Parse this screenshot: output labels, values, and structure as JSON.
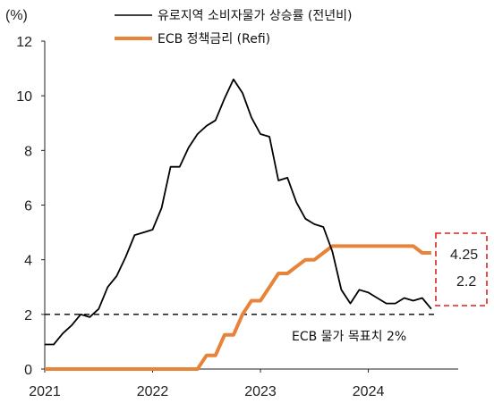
{
  "chart_data": {
    "type": "line",
    "unit_label": "(%)",
    "ylim": [
      0,
      12
    ],
    "yticks": [
      0,
      2,
      4,
      6,
      8,
      10,
      12
    ],
    "xlim": [
      0,
      46
    ],
    "xticks": [
      {
        "x": 0,
        "label": "2021"
      },
      {
        "x": 12,
        "label": "2022"
      },
      {
        "x": 24,
        "label": "2023"
      },
      {
        "x": 36,
        "label": "2024"
      }
    ],
    "series": [
      {
        "name": "유로지역 소비자물가 상승률 (전년비)",
        "color": "#000000",
        "x": [
          0,
          1,
          2,
          3,
          4,
          5,
          6,
          7,
          8,
          9,
          10,
          11,
          12,
          13,
          14,
          15,
          16,
          17,
          18,
          19,
          20,
          21,
          22,
          23,
          24,
          25,
          26,
          27,
          28,
          29,
          30,
          31,
          32,
          33,
          34,
          35,
          36,
          37,
          38,
          39,
          40,
          41,
          42,
          43
        ],
        "values": [
          0.9,
          0.9,
          1.3,
          1.6,
          2.0,
          1.9,
          2.2,
          3.0,
          3.4,
          4.1,
          4.9,
          5.0,
          5.1,
          5.9,
          7.4,
          7.4,
          8.1,
          8.6,
          8.9,
          9.1,
          9.9,
          10.6,
          10.1,
          9.2,
          8.6,
          8.5,
          6.9,
          7.0,
          6.1,
          5.5,
          5.3,
          5.2,
          4.3,
          2.9,
          2.4,
          2.9,
          2.8,
          2.6,
          2.4,
          2.4,
          2.6,
          2.5,
          2.6,
          2.2
        ]
      },
      {
        "name": "ECB 정책금리 (Refi)",
        "color": "#E8833A",
        "x": [
          0,
          17,
          18,
          19,
          20,
          21,
          22,
          23,
          24,
          25,
          26,
          27,
          28,
          29,
          30,
          31,
          32,
          33,
          34,
          35,
          36,
          37,
          38,
          39,
          40,
          41,
          42,
          43
        ],
        "values": [
          0,
          0,
          0.5,
          0.5,
          1.25,
          1.25,
          2.0,
          2.5,
          2.5,
          3.0,
          3.5,
          3.5,
          3.75,
          4.0,
          4.0,
          4.25,
          4.5,
          4.5,
          4.5,
          4.5,
          4.5,
          4.5,
          4.5,
          4.5,
          4.5,
          4.5,
          4.25,
          4.25
        ]
      }
    ],
    "reference_line": {
      "y": 2,
      "label": "ECB 물가 목표치 2%"
    },
    "end_labels": [
      {
        "text": "4.25",
        "series": 1
      },
      {
        "text": "2.2",
        "series": 0
      }
    ],
    "legend_placement": "top"
  }
}
